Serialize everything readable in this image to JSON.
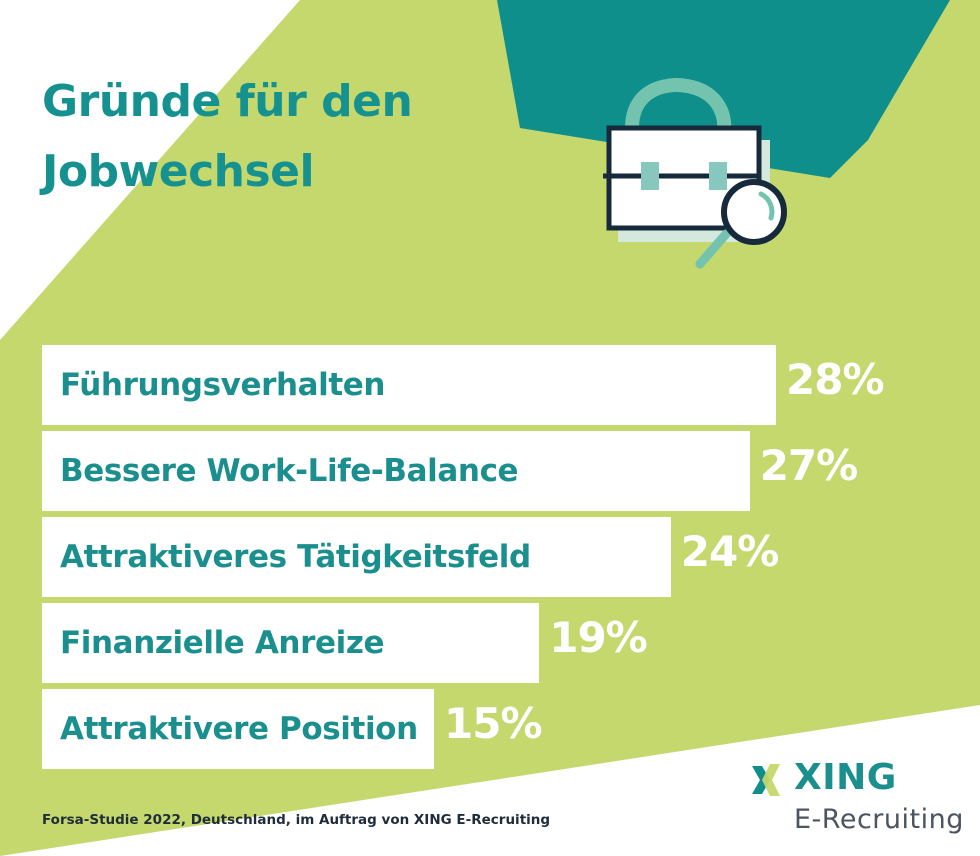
{
  "title_lines": [
    "Gründe für den",
    "Jobwechsel"
  ],
  "source_note": "Forsa-Studie 2022, Deutschland, im Auftrag von XING E-Recruiting",
  "logo": {
    "brand": "XING",
    "subtitle": "E-Recruiting"
  },
  "colors": {
    "teal": "#0f8f8c",
    "lime": "#c5d86d",
    "white": "#ffffff",
    "text_teal": "#1a8f8d"
  },
  "icons": [
    "briefcase-magnifier-icon",
    "xing-logo-icon"
  ],
  "chart_data": {
    "type": "bar",
    "orientation": "horizontal",
    "categories": [
      "Führungsverhalten",
      "Bessere Work-Life-Balance",
      "Attraktiveres Tätigkeitsfeld",
      "Finanzielle Anreize",
      "Attraktivere Position"
    ],
    "values": [
      28,
      27,
      24,
      19,
      15
    ],
    "value_labels": [
      "28%",
      "27%",
      "24%",
      "19%",
      "15%"
    ],
    "unit": "%",
    "xlim": [
      0,
      28
    ],
    "grid": false,
    "legend": "none"
  }
}
